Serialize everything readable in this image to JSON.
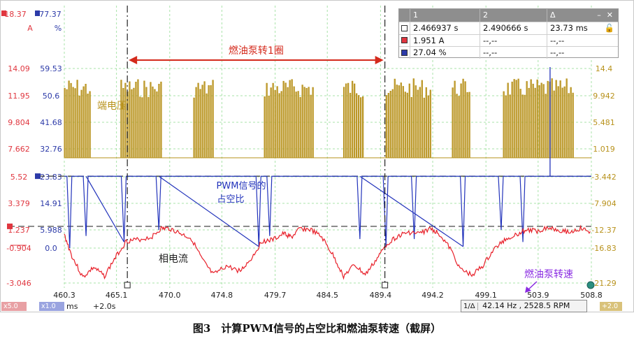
{
  "chart_data": {
    "type": "line",
    "title": "燃油泵转1圈",
    "xlabel": "ms",
    "time_offset": "+2.0s",
    "x_ticks": [
      "460.3",
      "465.1",
      "470.0",
      "474.8",
      "479.7",
      "484.5",
      "489.4",
      "494.2",
      "499.1",
      "503.9",
      "508.8"
    ],
    "xlim": [
      460.3,
      508.8
    ],
    "axes": [
      {
        "name": "current",
        "unit": "A",
        "scale_tag": "x5.0",
        "color": "#e0363f",
        "top": "18.37",
        "ticks": [
          "14.09",
          "11.95",
          "9.804",
          "7.662",
          "5.52",
          "3.379",
          "1.237",
          "-0.904",
          "-3.046"
        ]
      },
      {
        "name": "duty",
        "unit": "%",
        "scale_tag": "x1.0",
        "color": "#2c3aa8",
        "top": "77.37",
        "ticks": [
          "59.53",
          "50.6",
          "41.68",
          "32.76",
          "23.83",
          "14.91",
          "5.988",
          "0.0"
        ]
      },
      {
        "name": "voltage",
        "color": "#b8921c",
        "ticks": [
          "14.4",
          "9.942",
          "5.481",
          "1.019",
          "-3.442",
          "-7.904",
          "-12.37",
          "-16.83",
          "-21.29"
        ]
      }
    ],
    "series": [
      {
        "name": "端电压",
        "color": "#b8921c",
        "bursts_ms": [
          [
            460.3,
            462.8
          ],
          [
            465.5,
            469.2
          ],
          [
            472.2,
            474.0
          ],
          [
            478.7,
            483.3
          ],
          [
            486.0,
            487.8
          ],
          [
            489.9,
            494.0
          ],
          [
            496.0,
            497.6
          ],
          [
            500.7,
            507.2
          ]
        ],
        "low_level_V": 0.0,
        "high_level_V": 12.0
      },
      {
        "name": "PWM信号的占空比",
        "color": "#2233bb",
        "baseline_pct": 23.8,
        "drops": [
          {
            "x": 460.8,
            "y": 0.0
          },
          {
            "x": 462.3,
            "y": 4.0
          },
          {
            "x": 465.8,
            "y": 2.0
          },
          {
            "x": 469.0,
            "y": 6.0
          },
          {
            "x": 478.2,
            "y": 0.5
          },
          {
            "x": 479.2,
            "y": 4.0
          },
          {
            "x": 487.5,
            "y": 3.0
          },
          {
            "x": 489.9,
            "y": 0.5
          },
          {
            "x": 492.5,
            "y": 3.0
          },
          {
            "x": 497.0,
            "y": 0.5
          },
          {
            "x": 500.5,
            "y": 6.0
          },
          {
            "x": 502.5,
            "y": 2.0
          }
        ]
      },
      {
        "name": "相电流",
        "color": "#e8202a",
        "points": [
          [
            460.3,
            0.8
          ],
          [
            461.0,
            -0.9
          ],
          [
            462.0,
            -2.6
          ],
          [
            463.0,
            -1.8
          ],
          [
            464.0,
            -2.5
          ],
          [
            465.0,
            -1.0
          ],
          [
            466.0,
            0.3
          ],
          [
            467.0,
            0.4
          ],
          [
            468.3,
            0.6
          ],
          [
            469.2,
            1.3
          ],
          [
            470.0,
            1.3
          ],
          [
            471.0,
            0.9
          ],
          [
            472.0,
            0.5
          ],
          [
            473.0,
            -1.2
          ],
          [
            474.0,
            -2.4
          ],
          [
            475.2,
            -1.7
          ],
          [
            476.5,
            -2.1
          ],
          [
            477.5,
            -1.1
          ],
          [
            478.5,
            0.3
          ],
          [
            479.5,
            0.4
          ],
          [
            480.5,
            0.9
          ],
          [
            481.2,
            0.6
          ],
          [
            482.0,
            1.3
          ],
          [
            483.0,
            1.2
          ],
          [
            484.0,
            0.6
          ],
          [
            485.0,
            -0.8
          ],
          [
            486.0,
            -2.5
          ],
          [
            487.0,
            -1.6
          ],
          [
            488.0,
            -2.4
          ],
          [
            489.0,
            -1.2
          ],
          [
            490.0,
            0.1
          ],
          [
            491.0,
            0.7
          ],
          [
            492.0,
            1.0
          ],
          [
            493.0,
            0.9
          ],
          [
            494.0,
            1.3
          ],
          [
            494.8,
            0.9
          ],
          [
            495.8,
            -0.3
          ],
          [
            496.8,
            -2.0
          ],
          [
            497.8,
            -2.4
          ],
          [
            498.8,
            -1.7
          ],
          [
            499.8,
            -0.4
          ],
          [
            500.8,
            0.4
          ],
          [
            501.8,
            0.8
          ],
          [
            502.8,
            1.2
          ],
          [
            503.8,
            1.1
          ],
          [
            504.8,
            1.4
          ],
          [
            505.8,
            1.2
          ],
          [
            506.8,
            1.0
          ],
          [
            507.8,
            1.3
          ],
          [
            508.8,
            1.0
          ]
        ]
      }
    ],
    "annotations": [
      {
        "text": "端电压"
      },
      {
        "text": "PWM信号的",
        "text2": "占空比"
      },
      {
        "text": "相电流"
      },
      {
        "text": "燃油泵转速"
      }
    ],
    "cursor1_x": 466.1,
    "cursor2_x": 489.8,
    "ref_level_pct_a": 23.83,
    "ref_level_pct_b": 7.2
  },
  "cursor_table": {
    "headers": [
      "1",
      "2",
      "Δ"
    ],
    "rows": [
      {
        "color": "#ffffff",
        "c1": "2.466937 s",
        "c2": "2.490666 s",
        "c3": "23.73 ms"
      },
      {
        "color": "#e0363f",
        "c1": "1.951 A",
        "c2": "--,--",
        "c3": "--,--"
      },
      {
        "color": "#2c3aa8",
        "c1": "27.04 %",
        "c2": "--,--",
        "c3": "--,--"
      }
    ]
  },
  "status": {
    "tag_current": "x5.0",
    "tag_duty": "x1.0",
    "unit": "ms",
    "offset": "+2.0s",
    "cursor_mode": "1/Δ",
    "frequency": "42.14 Hz , 2528.5 RPM",
    "right_tag": "+2.0"
  },
  "caption": "图3　计算PWM信号的占空比和燃油泵转速（截屏）"
}
